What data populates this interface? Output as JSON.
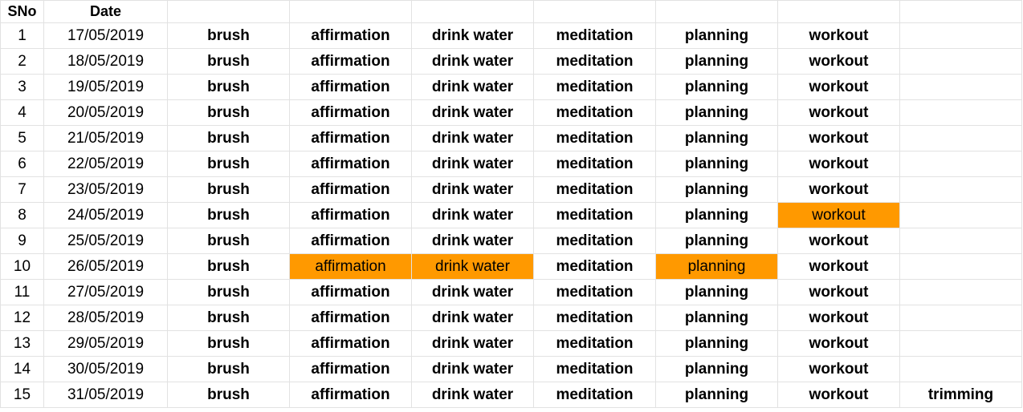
{
  "colors": {
    "highlight": "#ff9900",
    "gridline": "#e2e2e2"
  },
  "header": {
    "sno": "SNo",
    "date": "Date"
  },
  "rows": [
    {
      "sno": "1",
      "date": "17/05/2019",
      "tasks": [
        "brush",
        "affirmation",
        "drink water",
        "meditation",
        "planning",
        "workout",
        ""
      ],
      "highlight": []
    },
    {
      "sno": "2",
      "date": "18/05/2019",
      "tasks": [
        "brush",
        "affirmation",
        "drink water",
        "meditation",
        "planning",
        "workout",
        ""
      ],
      "highlight": []
    },
    {
      "sno": "3",
      "date": "19/05/2019",
      "tasks": [
        "brush",
        "affirmation",
        "drink water",
        "meditation",
        "planning",
        "workout",
        ""
      ],
      "highlight": []
    },
    {
      "sno": "4",
      "date": "20/05/2019",
      "tasks": [
        "brush",
        "affirmation",
        "drink water",
        "meditation",
        "planning",
        "workout",
        ""
      ],
      "highlight": []
    },
    {
      "sno": "5",
      "date": "21/05/2019",
      "tasks": [
        "brush",
        "affirmation",
        "drink water",
        "meditation",
        "planning",
        "workout",
        ""
      ],
      "highlight": []
    },
    {
      "sno": "6",
      "date": "22/05/2019",
      "tasks": [
        "brush",
        "affirmation",
        "drink water",
        "meditation",
        "planning",
        "workout",
        ""
      ],
      "highlight": []
    },
    {
      "sno": "7",
      "date": "23/05/2019",
      "tasks": [
        "brush",
        "affirmation",
        "drink water",
        "meditation",
        "planning",
        "workout",
        ""
      ],
      "highlight": []
    },
    {
      "sno": "8",
      "date": "24/05/2019",
      "tasks": [
        "brush",
        "affirmation",
        "drink water",
        "meditation",
        "planning",
        "workout",
        ""
      ],
      "highlight": [
        5
      ]
    },
    {
      "sno": "9",
      "date": "25/05/2019",
      "tasks": [
        "brush",
        "affirmation",
        "drink water",
        "meditation",
        "planning",
        "workout",
        ""
      ],
      "highlight": []
    },
    {
      "sno": "10",
      "date": "26/05/2019",
      "tasks": [
        "brush",
        "affirmation",
        "drink water",
        "meditation",
        "planning",
        "workout",
        ""
      ],
      "highlight": [
        1,
        2,
        4
      ]
    },
    {
      "sno": "11",
      "date": "27/05/2019",
      "tasks": [
        "brush",
        "affirmation",
        "drink water",
        "meditation",
        "planning",
        "workout",
        ""
      ],
      "highlight": []
    },
    {
      "sno": "12",
      "date": "28/05/2019",
      "tasks": [
        "brush",
        "affirmation",
        "drink water",
        "meditation",
        "planning",
        "workout",
        ""
      ],
      "highlight": []
    },
    {
      "sno": "13",
      "date": "29/05/2019",
      "tasks": [
        "brush",
        "affirmation",
        "drink water",
        "meditation",
        "planning",
        "workout",
        ""
      ],
      "highlight": []
    },
    {
      "sno": "14",
      "date": "30/05/2019",
      "tasks": [
        "brush",
        "affirmation",
        "drink water",
        "meditation",
        "planning",
        "workout",
        ""
      ],
      "highlight": []
    },
    {
      "sno": "15",
      "date": "31/05/2019",
      "tasks": [
        "brush",
        "affirmation",
        "drink water",
        "meditation",
        "planning",
        "workout",
        "trimming"
      ],
      "highlight": []
    }
  ]
}
